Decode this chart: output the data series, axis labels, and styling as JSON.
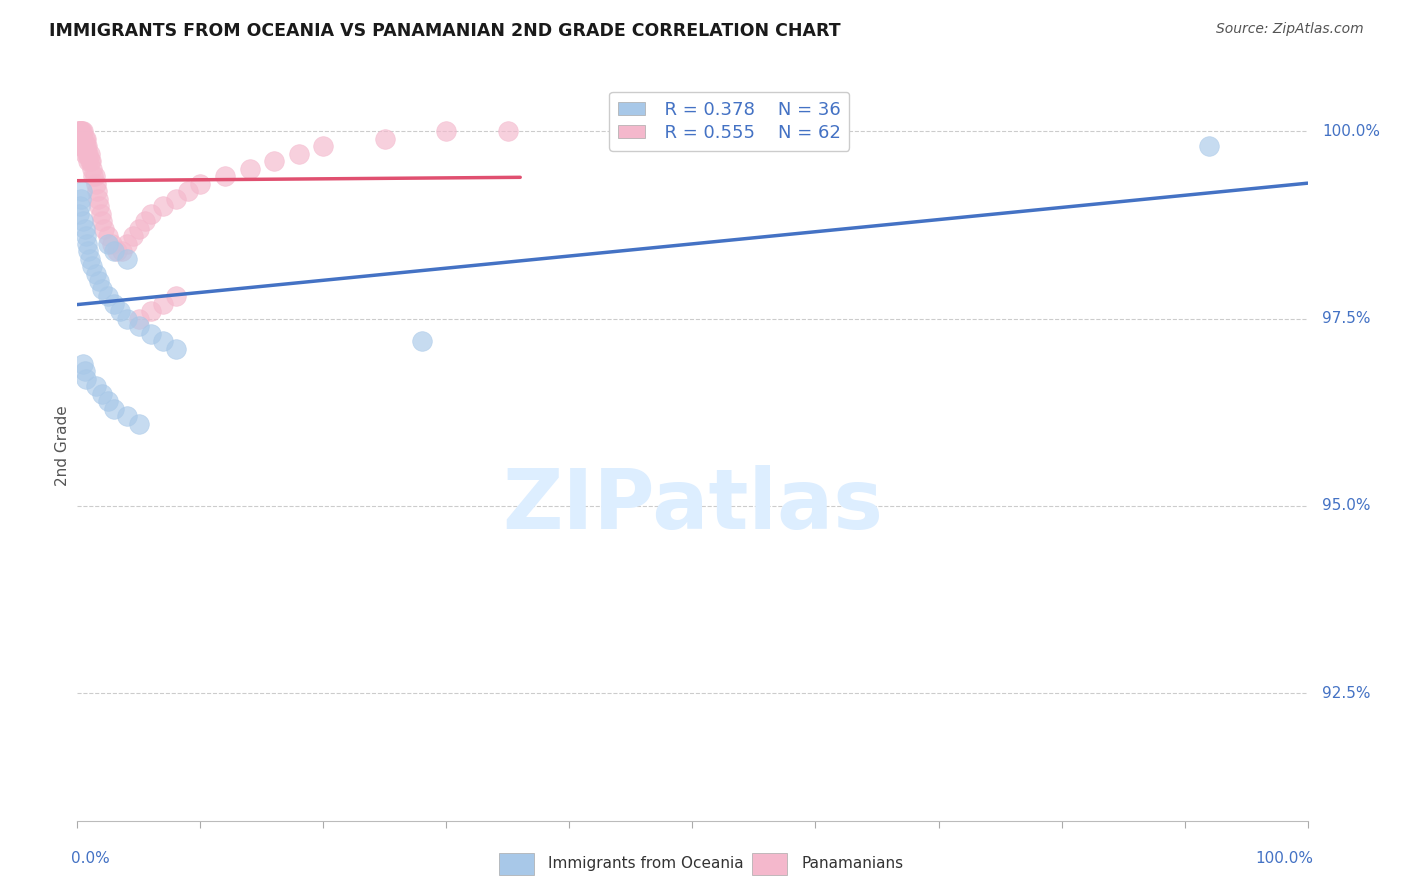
{
  "title": "IMMIGRANTS FROM OCEANIA VS PANAMANIAN 2ND GRADE CORRELATION CHART",
  "source": "Source: ZipAtlas.com",
  "ylabel": "2nd Grade",
  "ylabel_right_labels": [
    "100.0%",
    "97.5%",
    "95.0%",
    "92.5%"
  ],
  "ylabel_right_values": [
    1.0,
    0.975,
    0.95,
    0.925
  ],
  "legend_blue_r": "R = 0.378",
  "legend_blue_n": "N = 36",
  "legend_pink_r": "R = 0.555",
  "legend_pink_n": "N = 62",
  "blue_scatter_x": [
    0.001,
    0.002,
    0.003,
    0.004,
    0.005,
    0.006,
    0.007,
    0.008,
    0.009,
    0.01,
    0.012,
    0.015,
    0.018,
    0.02,
    0.025,
    0.03,
    0.035,
    0.04,
    0.05,
    0.06,
    0.07,
    0.08,
    0.025,
    0.03,
    0.04,
    0.005,
    0.006,
    0.007,
    0.015,
    0.02,
    0.025,
    0.03,
    0.04,
    0.05,
    0.92,
    0.28
  ],
  "blue_scatter_y": [
    0.989,
    0.99,
    0.991,
    0.992,
    0.988,
    0.987,
    0.986,
    0.985,
    0.984,
    0.983,
    0.982,
    0.981,
    0.98,
    0.979,
    0.978,
    0.977,
    0.976,
    0.975,
    0.974,
    0.973,
    0.972,
    0.971,
    0.985,
    0.984,
    0.983,
    0.969,
    0.968,
    0.967,
    0.966,
    0.965,
    0.964,
    0.963,
    0.962,
    0.961,
    0.998,
    0.972
  ],
  "pink_scatter_x": [
    0.001,
    0.001,
    0.001,
    0.002,
    0.002,
    0.002,
    0.003,
    0.003,
    0.003,
    0.004,
    0.004,
    0.004,
    0.005,
    0.005,
    0.005,
    0.006,
    0.006,
    0.006,
    0.007,
    0.007,
    0.008,
    0.008,
    0.009,
    0.009,
    0.01,
    0.01,
    0.011,
    0.012,
    0.013,
    0.014,
    0.015,
    0.016,
    0.017,
    0.018,
    0.019,
    0.02,
    0.022,
    0.025,
    0.028,
    0.032,
    0.036,
    0.04,
    0.045,
    0.05,
    0.055,
    0.06,
    0.07,
    0.08,
    0.09,
    0.1,
    0.12,
    0.14,
    0.16,
    0.18,
    0.2,
    0.25,
    0.3,
    0.35,
    0.05,
    0.06,
    0.07,
    0.08
  ],
  "pink_scatter_y": [
    1.0,
    1.0,
    0.999,
    1.0,
    1.0,
    0.999,
    1.0,
    0.999,
    0.998,
    1.0,
    0.999,
    0.998,
    1.0,
    0.999,
    0.998,
    0.999,
    0.998,
    0.997,
    0.999,
    0.998,
    0.998,
    0.997,
    0.997,
    0.996,
    0.997,
    0.996,
    0.996,
    0.995,
    0.994,
    0.994,
    0.993,
    0.992,
    0.991,
    0.99,
    0.989,
    0.988,
    0.987,
    0.986,
    0.985,
    0.984,
    0.984,
    0.985,
    0.986,
    0.987,
    0.988,
    0.989,
    0.99,
    0.991,
    0.992,
    0.993,
    0.994,
    0.995,
    0.996,
    0.997,
    0.998,
    0.999,
    1.0,
    1.0,
    0.975,
    0.976,
    0.977,
    0.978
  ],
  "blue_color": "#a8c8e8",
  "pink_color": "#f4b8cc",
  "blue_line_color": "#4472c4",
  "pink_line_color": "#e05070",
  "grid_color": "#cccccc",
  "right_axis_color": "#4472c4",
  "watermark_color": "#ddeeff",
  "background_color": "#ffffff",
  "xmin": 0.0,
  "xmax": 1.0,
  "ymin": 0.908,
  "ymax": 1.008
}
